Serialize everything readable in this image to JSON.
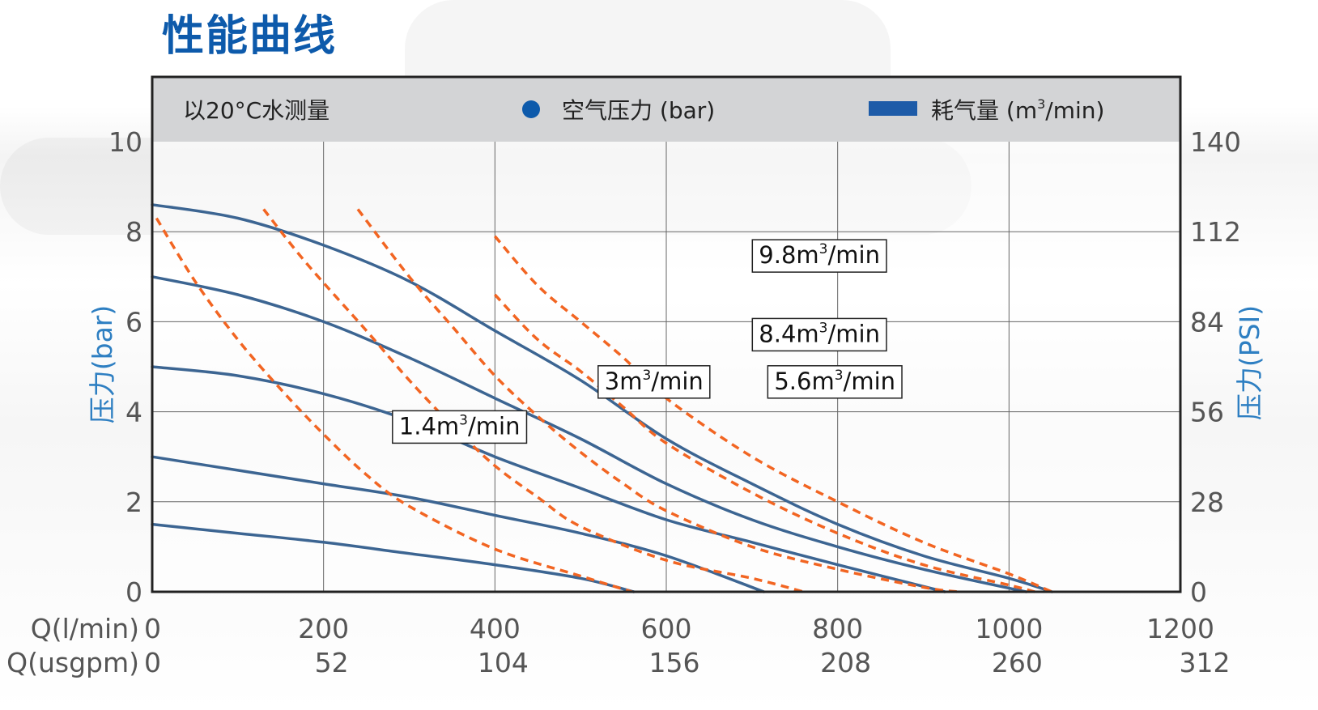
{
  "page_title": "性能曲线",
  "colors": {
    "pressure_curve": "#3c6592",
    "air_curve": "#f26522",
    "header_bg": "#d3d4d6",
    "axis_title": "#2e7fc2",
    "title": "#0d5aab",
    "legend_dot": "#0d5aab",
    "legend_bar": "#1d5ba8"
  },
  "legend": {
    "note": "以20°C水测量",
    "pressure": "空气压力 (bar)",
    "consumption_prefix": "耗气量 (m",
    "consumption_sup": "3",
    "consumption_suffix": "/min)"
  },
  "chart_data": {
    "type": "line",
    "xlabel_lpm": "Q(l/min)",
    "xlabel_usgpm": "Q(usgpm)",
    "ylabel_left": "压力(bar)",
    "ylabel_right": "压力(PSI)",
    "xlim": [
      0,
      1200
    ],
    "ylim": [
      0,
      10
    ],
    "x_ticks_lpm": [
      "0",
      "200",
      "400",
      "600",
      "800",
      "1000",
      "1200"
    ],
    "x_ticks_usgpm": [
      "0",
      "52",
      "104",
      "156",
      "208",
      "260",
      "312"
    ],
    "y_ticks_left": [
      "0",
      "2",
      "4",
      "6",
      "8",
      "10"
    ],
    "y_ticks_right": [
      "0",
      "28",
      "56",
      "84",
      "112",
      "140"
    ],
    "grid": true,
    "pressure_series": [
      {
        "points": [
          [
            0,
            8.6
          ],
          [
            100,
            8.3
          ],
          [
            200,
            7.7
          ],
          [
            300,
            6.9
          ],
          [
            400,
            5.8
          ],
          [
            500,
            4.7
          ],
          [
            600,
            3.4
          ],
          [
            700,
            2.4
          ],
          [
            800,
            1.5
          ],
          [
            900,
            0.8
          ],
          [
            1000,
            0.3
          ],
          [
            1050,
            0
          ]
        ]
      },
      {
        "points": [
          [
            0,
            7.0
          ],
          [
            100,
            6.6
          ],
          [
            200,
            6.0
          ],
          [
            300,
            5.2
          ],
          [
            400,
            4.3
          ],
          [
            500,
            3.4
          ],
          [
            600,
            2.4
          ],
          [
            700,
            1.6
          ],
          [
            800,
            1.0
          ],
          [
            900,
            0.5
          ],
          [
            1020,
            0
          ]
        ]
      },
      {
        "points": [
          [
            0,
            5.0
          ],
          [
            100,
            4.8
          ],
          [
            200,
            4.4
          ],
          [
            300,
            3.8
          ],
          [
            400,
            3.0
          ],
          [
            500,
            2.3
          ],
          [
            600,
            1.6
          ],
          [
            700,
            1.1
          ],
          [
            800,
            0.6
          ],
          [
            925,
            0
          ]
        ]
      },
      {
        "points": [
          [
            0,
            3.0
          ],
          [
            100,
            2.7
          ],
          [
            200,
            2.4
          ],
          [
            300,
            2.1
          ],
          [
            400,
            1.7
          ],
          [
            500,
            1.3
          ],
          [
            600,
            0.8
          ],
          [
            714,
            0
          ]
        ]
      },
      {
        "points": [
          [
            0,
            1.5
          ],
          [
            100,
            1.3
          ],
          [
            200,
            1.1
          ],
          [
            300,
            0.85
          ],
          [
            400,
            0.6
          ],
          [
            500,
            0.3
          ],
          [
            562,
            0
          ]
        ]
      }
    ],
    "air_series": [
      {
        "label_num": "1.4",
        "label_suffix": "/min",
        "label_pos": [
          0.24,
          3.5
        ],
        "points": [
          [
            5,
            8.3
          ],
          [
            50,
            6.9
          ],
          [
            100,
            5.6
          ],
          [
            150,
            4.5
          ],
          [
            200,
            3.5
          ],
          [
            250,
            2.6
          ],
          [
            300,
            1.9
          ],
          [
            400,
            0.95
          ],
          [
            500,
            0.35
          ],
          [
            560,
            0
          ]
        ]
      },
      {
        "label_num": "3",
        "label_suffix": "/min",
        "label_pos": [
          0.44,
          4.5
        ],
        "points": [
          [
            130,
            8.5
          ],
          [
            180,
            7.3
          ],
          [
            250,
            5.8
          ],
          [
            300,
            4.7
          ],
          [
            350,
            3.7
          ],
          [
            400,
            2.8
          ],
          [
            450,
            2.1
          ],
          [
            500,
            1.45
          ],
          [
            600,
            0.7
          ],
          [
            700,
            0.3
          ],
          [
            760,
            0
          ]
        ]
      },
      {
        "label_num": "5.6",
        "label_suffix": "/min",
        "label_pos": [
          0.605,
          4.5
        ],
        "points": [
          [
            240,
            8.5
          ],
          [
            300,
            7.0
          ],
          [
            350,
            5.9
          ],
          [
            400,
            4.8
          ],
          [
            450,
            3.9
          ],
          [
            500,
            3.1
          ],
          [
            550,
            2.4
          ],
          [
            600,
            1.8
          ],
          [
            700,
            1.0
          ],
          [
            800,
            0.5
          ],
          [
            900,
            0.1
          ],
          [
            940,
            0
          ]
        ]
      },
      {
        "label_num": "8.4",
        "label_suffix": "/min",
        "label_pos": [
          0.59,
          5.55
        ],
        "points": [
          [
            400,
            6.6
          ],
          [
            450,
            5.6
          ],
          [
            500,
            4.9
          ],
          [
            550,
            4.1
          ],
          [
            600,
            3.3
          ],
          [
            700,
            2.2
          ],
          [
            800,
            1.3
          ],
          [
            900,
            0.6
          ],
          [
            1000,
            0.15
          ],
          [
            1030,
            0
          ]
        ]
      },
      {
        "label_num": "9.8",
        "label_suffix": "/min",
        "label_pos": [
          0.59,
          7.3
        ],
        "points": [
          [
            400,
            7.9
          ],
          [
            450,
            6.8
          ],
          [
            500,
            6.0
          ],
          [
            550,
            5.2
          ],
          [
            600,
            4.3
          ],
          [
            700,
            3.0
          ],
          [
            800,
            2.0
          ],
          [
            900,
            1.1
          ],
          [
            1000,
            0.4
          ],
          [
            1050,
            0
          ]
        ]
      }
    ]
  }
}
